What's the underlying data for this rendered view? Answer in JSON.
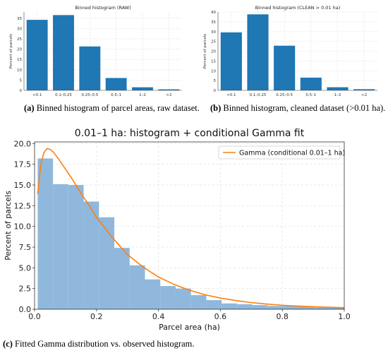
{
  "chart_data": [
    {
      "type": "bar",
      "title": "Binned histogram (RAW)",
      "xlabel": "",
      "ylabel": "Percent of parcels",
      "categories": [
        "<0.1",
        "0.1–0.25",
        "0.25–0.5",
        "0.5–1",
        "1–2",
        ">2"
      ],
      "values": [
        34.2,
        36.5,
        21.3,
        6.0,
        1.5,
        0.5
      ],
      "ylim": [
        0,
        38
      ],
      "yticks": [
        0,
        5,
        10,
        15,
        20,
        25,
        30,
        35
      ],
      "grid": true,
      "color": "#1f77b4"
    },
    {
      "type": "bar",
      "title": "Binned histogram (CLEAN > 0.01 ha)",
      "xlabel": "",
      "ylabel": "Percent of parcels",
      "categories": [
        "<0.1",
        "0.1–0.25",
        "0.25–0.5",
        "0.5–1",
        "1–2",
        ">2"
      ],
      "values": [
        29.6,
        38.8,
        22.8,
        6.5,
        1.6,
        0.6
      ],
      "ylim": [
        0,
        40
      ],
      "yticks": [
        0,
        5,
        10,
        15,
        20,
        25,
        30,
        35,
        40
      ],
      "grid": true,
      "color": "#1f77b4"
    },
    {
      "type": "histogram+line",
      "title": "0.01–1 ha: histogram + conditional Gamma fit",
      "xlabel": "Parcel area (ha)",
      "ylabel": "Percent of parcels",
      "xlim": [
        0,
        1
      ],
      "ylim": [
        0,
        20.2
      ],
      "xticks": [
        0.0,
        0.2,
        0.4,
        0.6,
        0.8,
        1.0
      ],
      "yticks": [
        0.0,
        2.5,
        5.0,
        7.5,
        10.0,
        12.5,
        15.0,
        17.5,
        20.0
      ],
      "grid": true,
      "legend_position": "top-right",
      "bins": {
        "edges": [
          0.01,
          0.0595,
          0.109,
          0.1585,
          0.208,
          0.2575,
          0.307,
          0.3565,
          0.406,
          0.4555,
          0.505,
          0.5545,
          0.604,
          0.6535,
          0.703,
          0.7525,
          0.802,
          0.8515,
          0.901,
          0.9505,
          1.0
        ],
        "values": [
          18.2,
          15.1,
          15.0,
          13.0,
          11.1,
          7.4,
          5.3,
          3.6,
          2.8,
          2.5,
          1.7,
          1.1,
          0.7,
          0.6,
          0.5,
          0.4,
          0.4,
          0.3,
          0.2,
          0.2
        ],
        "color": "#8fb8dc"
      },
      "series": [
        {
          "name": "Gamma (conditional 0.01–1 ha)",
          "color": "#ff7f0e",
          "x": [
            0.01,
            0.02,
            0.03,
            0.04,
            0.05,
            0.06,
            0.08,
            0.1,
            0.12,
            0.15,
            0.18,
            0.2,
            0.25,
            0.3,
            0.35,
            0.4,
            0.45,
            0.5,
            0.55,
            0.6,
            0.65,
            0.7,
            0.75,
            0.8,
            0.85,
            0.9,
            0.95,
            1.0
          ],
          "y": [
            13.9,
            17.4,
            18.9,
            19.4,
            19.3,
            19.0,
            18.0,
            16.9,
            15.8,
            14.0,
            12.3,
            11.1,
            8.7,
            6.6,
            5.1,
            3.9,
            3.0,
            2.3,
            1.75,
            1.35,
            1.05,
            0.8,
            0.62,
            0.48,
            0.38,
            0.3,
            0.24,
            0.19
          ]
        }
      ]
    }
  ],
  "captions": {
    "a_label": "(a)",
    "a_text": " Binned histogram of parcel areas, raw dataset.",
    "b_label": "(b)",
    "b_text": " Binned histogram, cleaned dataset (>0.01 ha).",
    "c_label": "(c)",
    "c_text": " Fitted Gamma distribution vs. observed histogram."
  }
}
